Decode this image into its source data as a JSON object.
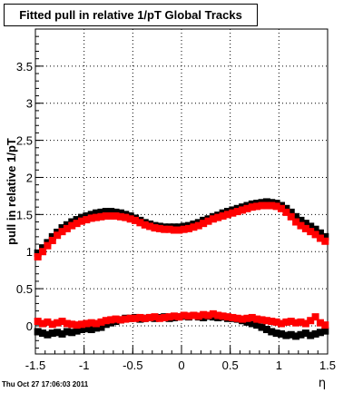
{
  "chart_data": {
    "type": "scatter",
    "title": "Fitted pull in relative 1/pT  Global Tracks",
    "xlabel": "η",
    "ylabel": "pull in relative 1/pT",
    "xlim": [
      -1.5,
      1.5
    ],
    "ylim": [
      -0.38,
      4.0
    ],
    "grid": true,
    "x_ticks": [
      -1.5,
      -1,
      -0.5,
      0,
      0.5,
      1,
      1.5
    ],
    "x_tick_labels": [
      "-1.5",
      "-1",
      "-0.5",
      "0",
      "0.5",
      "1",
      "1.5"
    ],
    "y_ticks": [
      0,
      0.5,
      1,
      1.5,
      2,
      2.5,
      3,
      3.5
    ],
    "y_tick_labels": [
      "0",
      "0.5",
      "1",
      "1.5",
      "2",
      "2.5",
      "3",
      "3.5"
    ],
    "series": [
      {
        "color": "#000000",
        "marker": "square",
        "x": [
          -1.475,
          -1.425,
          -1.375,
          -1.325,
          -1.275,
          -1.225,
          -1.175,
          -1.125,
          -1.075,
          -1.025,
          -0.975,
          -0.925,
          -0.875,
          -0.825,
          -0.775,
          -0.725,
          -0.675,
          -0.625,
          -0.575,
          -0.525,
          -0.475,
          -0.425,
          -0.375,
          -0.325,
          -0.275,
          -0.225,
          -0.175,
          -0.125,
          -0.075,
          -0.025,
          0.025,
          0.075,
          0.125,
          0.175,
          0.225,
          0.275,
          0.325,
          0.375,
          0.425,
          0.475,
          0.525,
          0.575,
          0.625,
          0.675,
          0.725,
          0.775,
          0.825,
          0.875,
          0.925,
          0.975,
          1.025,
          1.075,
          1.125,
          1.175,
          1.225,
          1.275,
          1.325,
          1.375,
          1.425,
          1.475
        ],
        "y": [
          0.98,
          1.05,
          1.12,
          1.2,
          1.26,
          1.32,
          1.36,
          1.4,
          1.43,
          1.46,
          1.48,
          1.5,
          1.52,
          1.53,
          1.54,
          1.54,
          1.53,
          1.52,
          1.5,
          1.48,
          1.45,
          1.42,
          1.39,
          1.37,
          1.35,
          1.34,
          1.33,
          1.33,
          1.33,
          1.33,
          1.34,
          1.35,
          1.37,
          1.39,
          1.42,
          1.44,
          1.47,
          1.49,
          1.52,
          1.54,
          1.56,
          1.58,
          1.6,
          1.62,
          1.64,
          1.65,
          1.66,
          1.67,
          1.66,
          1.65,
          1.62,
          1.58,
          1.53,
          1.47,
          1.42,
          1.38,
          1.34,
          1.3,
          1.25,
          1.2
        ]
      },
      {
        "color": "#ff0000",
        "marker": "square",
        "x": [
          -1.475,
          -1.425,
          -1.375,
          -1.325,
          -1.275,
          -1.225,
          -1.175,
          -1.125,
          -1.075,
          -1.025,
          -0.975,
          -0.925,
          -0.875,
          -0.825,
          -0.775,
          -0.725,
          -0.675,
          -0.625,
          -0.575,
          -0.525,
          -0.475,
          -0.425,
          -0.375,
          -0.325,
          -0.275,
          -0.225,
          -0.175,
          -0.125,
          -0.075,
          -0.025,
          0.025,
          0.075,
          0.125,
          0.175,
          0.225,
          0.275,
          0.325,
          0.375,
          0.425,
          0.475,
          0.525,
          0.575,
          0.625,
          0.675,
          0.725,
          0.775,
          0.825,
          0.875,
          0.925,
          0.975,
          1.025,
          1.075,
          1.125,
          1.175,
          1.225,
          1.275,
          1.325,
          1.375,
          1.425,
          1.475
        ],
        "y": [
          0.93,
          1.0,
          1.08,
          1.15,
          1.22,
          1.27,
          1.31,
          1.35,
          1.38,
          1.41,
          1.43,
          1.45,
          1.46,
          1.47,
          1.48,
          1.48,
          1.48,
          1.47,
          1.46,
          1.44,
          1.42,
          1.39,
          1.36,
          1.34,
          1.32,
          1.31,
          1.3,
          1.3,
          1.29,
          1.29,
          1.3,
          1.31,
          1.33,
          1.35,
          1.38,
          1.41,
          1.44,
          1.46,
          1.48,
          1.5,
          1.52,
          1.54,
          1.56,
          1.58,
          1.6,
          1.61,
          1.62,
          1.62,
          1.62,
          1.61,
          1.58,
          1.53,
          1.47,
          1.4,
          1.35,
          1.31,
          1.27,
          1.23,
          1.18,
          1.14
        ]
      },
      {
        "color": "#000000",
        "marker": "square",
        "x": [
          -1.475,
          -1.425,
          -1.375,
          -1.325,
          -1.275,
          -1.225,
          -1.175,
          -1.125,
          -1.075,
          -1.025,
          -0.975,
          -0.925,
          -0.875,
          -0.825,
          -0.775,
          -0.725,
          -0.675,
          -0.625,
          -0.575,
          -0.525,
          -0.475,
          -0.425,
          -0.375,
          -0.325,
          -0.275,
          -0.225,
          -0.175,
          -0.125,
          -0.075,
          -0.025,
          0.025,
          0.075,
          0.125,
          0.175,
          0.225,
          0.275,
          0.325,
          0.375,
          0.425,
          0.475,
          0.525,
          0.575,
          0.625,
          0.675,
          0.725,
          0.775,
          0.825,
          0.875,
          0.925,
          0.975,
          1.025,
          1.075,
          1.125,
          1.175,
          1.225,
          1.275,
          1.325,
          1.375,
          1.425,
          1.475
        ],
        "y": [
          -0.08,
          -0.1,
          -0.12,
          -0.1,
          -0.09,
          -0.11,
          -0.08,
          -0.09,
          -0.07,
          -0.05,
          -0.04,
          -0.05,
          -0.03,
          -0.02,
          0.02,
          0.04,
          0.06,
          0.08,
          0.1,
          0.1,
          0.11,
          0.09,
          0.1,
          0.11,
          0.1,
          0.11,
          0.12,
          0.1,
          0.11,
          0.12,
          0.13,
          0.12,
          0.14,
          0.12,
          0.11,
          0.13,
          0.12,
          0.11,
          0.12,
          0.1,
          0.1,
          0.09,
          0.07,
          0.05,
          0.03,
          0.01,
          -0.02,
          -0.05,
          -0.08,
          -0.1,
          -0.11,
          -0.13,
          -0.12,
          -0.14,
          -0.12,
          -0.1,
          -0.13,
          -0.11,
          -0.09,
          -0.07
        ]
      },
      {
        "color": "#ff0000",
        "marker": "square",
        "x": [
          -1.475,
          -1.425,
          -1.375,
          -1.325,
          -1.275,
          -1.225,
          -1.175,
          -1.125,
          -1.075,
          -1.025,
          -0.975,
          -0.925,
          -0.875,
          -0.825,
          -0.775,
          -0.725,
          -0.675,
          -0.625,
          -0.575,
          -0.525,
          -0.475,
          -0.425,
          -0.375,
          -0.325,
          -0.275,
          -0.225,
          -0.175,
          -0.125,
          -0.075,
          -0.025,
          0.025,
          0.075,
          0.125,
          0.175,
          0.225,
          0.275,
          0.325,
          0.375,
          0.425,
          0.475,
          0.525,
          0.575,
          0.625,
          0.675,
          0.725,
          0.775,
          0.825,
          0.875,
          0.925,
          0.975,
          1.025,
          1.075,
          1.125,
          1.175,
          1.225,
          1.275,
          1.325,
          1.375,
          1.425,
          1.475
        ],
        "y": [
          0.06,
          0.03,
          0.05,
          0.02,
          0.04,
          0.06,
          0.03,
          0.02,
          0.01,
          0.02,
          0.03,
          0.04,
          0.03,
          0.05,
          0.07,
          0.08,
          0.09,
          0.08,
          0.09,
          0.1,
          0.1,
          0.11,
          0.1,
          0.11,
          0.12,
          0.1,
          0.11,
          0.12,
          0.13,
          0.12,
          0.14,
          0.13,
          0.14,
          0.13,
          0.15,
          0.14,
          0.16,
          0.14,
          0.13,
          0.12,
          0.11,
          0.1,
          0.09,
          0.1,
          0.11,
          0.09,
          0.08,
          0.07,
          0.06,
          0.05,
          0.03,
          0.05,
          0.06,
          0.04,
          0.05,
          0.03,
          0.07,
          0.12,
          0.04,
          0.01
        ]
      }
    ]
  },
  "footer": {
    "timestamp": "Thu Oct 27 17:06:03 2011"
  }
}
